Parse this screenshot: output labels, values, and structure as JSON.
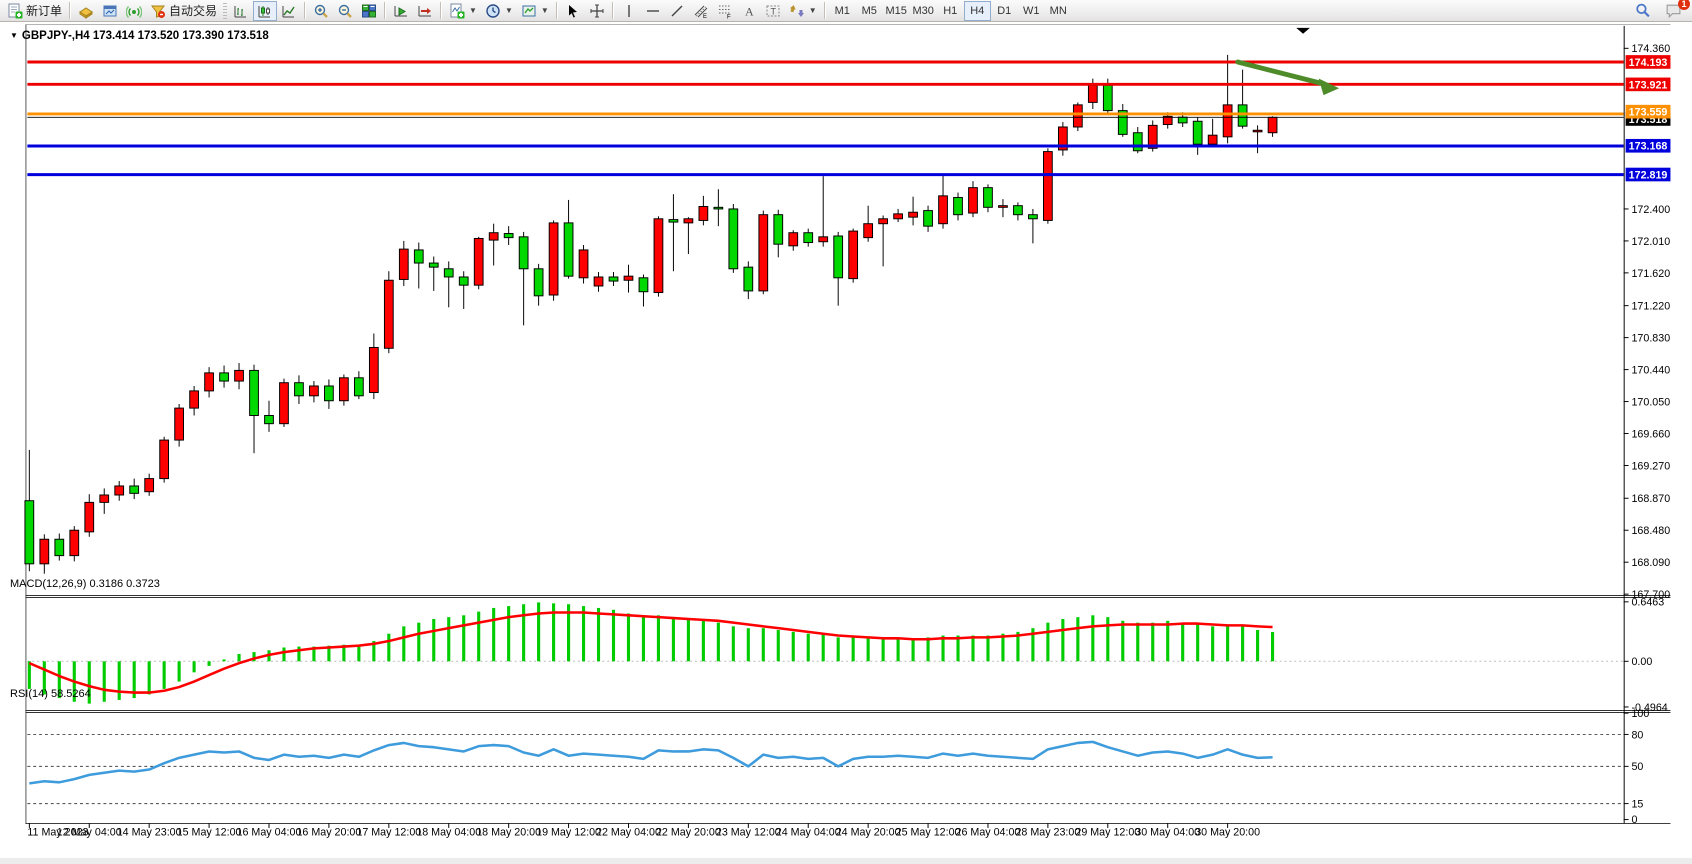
{
  "toolbar": {
    "new_order_label": "新订单",
    "autotrading_label": "自动交易",
    "notification_badge": "1",
    "channel_sub": "E",
    "fibo_sub": "F",
    "text_glyph": "A",
    "label_glyph": "T",
    "timeframes": [
      {
        "label": "M1",
        "active": false
      },
      {
        "label": "M5",
        "active": false
      },
      {
        "label": "M15",
        "active": false
      },
      {
        "label": "M30",
        "active": false
      },
      {
        "label": "H1",
        "active": false
      },
      {
        "label": "H4",
        "active": true
      },
      {
        "label": "D1",
        "active": false
      },
      {
        "label": "W1",
        "active": false
      },
      {
        "label": "MN",
        "active": false
      }
    ],
    "icon_names": [
      "new-order",
      "market",
      "charts",
      "signals",
      "autotrading",
      "bar-chart",
      "candlestick",
      "line-chart",
      "zoom-in",
      "zoom-out",
      "tile-windows",
      "auto-scroll",
      "chart-shift",
      "indicators",
      "periods",
      "templates",
      "cursor",
      "crosshair",
      "vertical-line",
      "horizontal-line",
      "trendline",
      "equidistant-channel",
      "fibonacci",
      "text",
      "text-label",
      "arrows",
      "search",
      "notifications"
    ]
  },
  "chart": {
    "title": "GBPJPY-,H4  173.414 173.520 173.390 173.518",
    "symbol_period": "GBPJPY-,H4",
    "ohlc": {
      "open": "173.414",
      "high": "173.520",
      "low": "173.390",
      "close": "173.518"
    }
  },
  "price_axis": {
    "ticks": [
      "174.360",
      "172.400",
      "172.010",
      "171.620",
      "171.220",
      "170.830",
      "170.440",
      "170.050",
      "169.660",
      "169.270",
      "168.870",
      "168.480",
      "168.090",
      "167.700"
    ],
    "badges": [
      {
        "label": "174.193",
        "color": "#ee0000"
      },
      {
        "label": "173.921",
        "color": "#ee0000"
      },
      {
        "label": "173.559",
        "color": "#ff9100"
      },
      {
        "label": "173.518",
        "color": "#000000"
      },
      {
        "label": "173.168",
        "color": "#0000dd"
      },
      {
        "label": "172.819",
        "color": "#0000dd"
      }
    ]
  },
  "time_axis": {
    "labels": [
      "11 May 2023",
      "12 May 04:00",
      "14 May 23:00",
      "15 May 12:00",
      "16 May 04:00",
      "16 May 20:00",
      "17 May 12:00",
      "18 May 04:00",
      "18 May 20:00",
      "19 May 12:00",
      "22 May 04:00",
      "22 May 20:00",
      "23 May 12:00",
      "24 May 04:00",
      "24 May 20:00",
      "25 May 12:00",
      "26 May 04:00",
      "28 May 23:00",
      "29 May 12:00",
      "30 May 04:00",
      "30 May 20:00"
    ]
  },
  "chart_data": {
    "type": "candlestick",
    "symbol": "GBPJPY",
    "timeframe": "H4",
    "up_color": "#ff0000",
    "down_color": "#00d800",
    "price_range": [
      167.7,
      174.36
    ],
    "current_price": 173.518,
    "horizontal_lines": [
      {
        "price": 174.193,
        "color": "#ee0000"
      },
      {
        "price": 173.921,
        "color": "#ee0000"
      },
      {
        "price": 173.559,
        "color": "#ff9100"
      },
      {
        "price": 173.168,
        "color": "#0000dd"
      },
      {
        "price": 172.819,
        "color": "#0000dd"
      }
    ],
    "candles": [
      [
        168.84,
        169.46,
        167.98,
        168.07
      ],
      [
        168.07,
        168.43,
        167.95,
        168.37
      ],
      [
        168.37,
        168.44,
        168.11,
        168.17
      ],
      [
        168.17,
        168.53,
        168.1,
        168.48
      ],
      [
        168.46,
        168.92,
        168.4,
        168.82
      ],
      [
        168.82,
        168.99,
        168.68,
        168.91
      ],
      [
        168.91,
        169.08,
        168.84,
        169.02
      ],
      [
        169.02,
        169.11,
        168.86,
        168.93
      ],
      [
        168.95,
        169.17,
        168.9,
        169.11
      ],
      [
        169.11,
        169.62,
        169.06,
        169.58
      ],
      [
        169.58,
        170.02,
        169.5,
        169.97
      ],
      [
        169.97,
        170.24,
        169.88,
        170.18
      ],
      [
        170.18,
        170.47,
        170.1,
        170.4
      ],
      [
        170.4,
        170.49,
        170.22,
        170.3
      ],
      [
        170.3,
        170.52,
        170.2,
        170.43
      ],
      [
        170.43,
        170.5,
        169.42,
        169.88
      ],
      [
        169.88,
        170.06,
        169.68,
        169.78
      ],
      [
        169.78,
        170.33,
        169.74,
        170.28
      ],
      [
        170.28,
        170.37,
        170.02,
        170.12
      ],
      [
        170.12,
        170.3,
        170.04,
        170.24
      ],
      [
        170.24,
        170.32,
        169.96,
        170.06
      ],
      [
        170.06,
        170.38,
        170.0,
        170.34
      ],
      [
        170.34,
        170.42,
        170.08,
        170.12
      ],
      [
        170.16,
        170.88,
        170.08,
        170.71
      ],
      [
        170.7,
        171.64,
        170.64,
        171.53
      ],
      [
        171.54,
        172.01,
        171.46,
        171.91
      ],
      [
        171.9,
        171.99,
        171.43,
        171.74
      ],
      [
        171.74,
        171.82,
        171.4,
        171.69
      ],
      [
        171.67,
        171.76,
        171.2,
        171.57
      ],
      [
        171.57,
        171.64,
        171.18,
        171.47
      ],
      [
        171.47,
        172.06,
        171.42,
        172.04
      ],
      [
        172.02,
        172.22,
        171.71,
        172.11
      ],
      [
        172.1,
        172.19,
        171.96,
        172.05
      ],
      [
        172.06,
        172.12,
        170.98,
        171.67
      ],
      [
        171.67,
        171.73,
        171.22,
        171.34
      ],
      [
        171.35,
        172.26,
        171.28,
        172.23
      ],
      [
        172.23,
        172.51,
        171.55,
        171.58
      ],
      [
        171.56,
        171.96,
        171.49,
        171.9
      ],
      [
        171.46,
        171.63,
        171.39,
        171.57
      ],
      [
        171.57,
        171.63,
        171.46,
        171.52
      ],
      [
        171.53,
        171.72,
        171.38,
        171.58
      ],
      [
        171.56,
        171.6,
        171.21,
        171.39
      ],
      [
        171.38,
        172.31,
        171.33,
        172.28
      ],
      [
        172.27,
        172.58,
        171.64,
        172.24
      ],
      [
        172.23,
        172.3,
        171.85,
        172.28
      ],
      [
        172.26,
        172.56,
        172.2,
        172.43
      ],
      [
        172.42,
        172.64,
        172.19,
        172.4
      ],
      [
        172.4,
        172.46,
        171.62,
        171.67
      ],
      [
        171.69,
        171.76,
        171.3,
        171.4
      ],
      [
        171.4,
        172.38,
        171.36,
        172.33
      ],
      [
        172.33,
        172.39,
        171.81,
        171.97
      ],
      [
        171.95,
        172.14,
        171.89,
        172.11
      ],
      [
        172.11,
        172.16,
        171.94,
        171.99
      ],
      [
        172.0,
        172.8,
        171.94,
        172.06
      ],
      [
        172.07,
        172.12,
        171.22,
        171.56
      ],
      [
        171.55,
        172.16,
        171.5,
        172.13
      ],
      [
        172.05,
        172.44,
        172.0,
        172.22
      ],
      [
        172.22,
        172.32,
        171.7,
        172.28
      ],
      [
        172.28,
        172.4,
        172.24,
        172.34
      ],
      [
        172.3,
        172.55,
        172.2,
        172.36
      ],
      [
        172.38,
        172.44,
        172.12,
        172.19
      ],
      [
        172.22,
        172.81,
        172.16,
        172.56
      ],
      [
        172.54,
        172.6,
        172.26,
        172.33
      ],
      [
        172.35,
        172.74,
        172.3,
        172.66
      ],
      [
        172.66,
        172.7,
        172.36,
        172.42
      ],
      [
        172.42,
        172.52,
        172.3,
        172.44
      ],
      [
        172.44,
        172.48,
        172.26,
        172.33
      ],
      [
        172.33,
        172.4,
        171.98,
        172.28
      ],
      [
        172.26,
        173.14,
        172.22,
        173.1
      ],
      [
        173.12,
        173.46,
        173.05,
        173.4
      ],
      [
        173.4,
        173.7,
        173.35,
        173.67
      ],
      [
        173.7,
        173.99,
        173.62,
        173.91
      ],
      [
        173.91,
        173.99,
        173.55,
        173.6
      ],
      [
        173.6,
        173.68,
        173.28,
        173.31
      ],
      [
        173.33,
        173.4,
        173.08,
        173.11
      ],
      [
        173.14,
        173.48,
        173.1,
        173.42
      ],
      [
        173.43,
        173.58,
        173.38,
        173.53
      ],
      [
        173.52,
        173.58,
        173.4,
        173.45
      ],
      [
        173.47,
        173.52,
        173.06,
        173.19
      ],
      [
        173.19,
        173.5,
        173.15,
        173.3
      ],
      [
        173.28,
        174.28,
        173.2,
        173.67
      ],
      [
        173.67,
        174.1,
        173.38,
        173.41
      ],
      [
        173.35,
        173.42,
        173.08,
        173.36
      ],
      [
        173.33,
        173.53,
        173.28,
        173.518
      ]
    ],
    "macd": {
      "label": "MACD(12,26,9) 0.3186 0.3723",
      "params": "12,26,9",
      "main_value": 0.3186,
      "signal_value": 0.3723,
      "scale": [
        "0.6463",
        "0.00",
        "-0.4964"
      ],
      "range": [
        -0.4964,
        0.6463
      ],
      "hist_color": "#00cc00",
      "signal_color": "#ff0000",
      "histogram": [
        -0.3,
        -0.36,
        -0.4,
        -0.44,
        -0.46,
        -0.44,
        -0.42,
        -0.4,
        -0.36,
        -0.3,
        -0.22,
        -0.12,
        -0.05,
        0.02,
        0.08,
        0.1,
        0.12,
        0.15,
        0.16,
        0.16,
        0.17,
        0.18,
        0.18,
        0.22,
        0.3,
        0.38,
        0.42,
        0.46,
        0.48,
        0.5,
        0.54,
        0.58,
        0.6,
        0.62,
        0.64,
        0.63,
        0.62,
        0.6,
        0.58,
        0.56,
        0.52,
        0.5,
        0.5,
        0.48,
        0.46,
        0.44,
        0.42,
        0.38,
        0.36,
        0.36,
        0.34,
        0.32,
        0.3,
        0.3,
        0.26,
        0.26,
        0.26,
        0.26,
        0.26,
        0.24,
        0.26,
        0.28,
        0.28,
        0.28,
        0.28,
        0.3,
        0.32,
        0.36,
        0.42,
        0.46,
        0.48,
        0.5,
        0.48,
        0.44,
        0.42,
        0.42,
        0.44,
        0.42,
        0.4,
        0.38,
        0.4,
        0.38,
        0.34,
        0.3186
      ],
      "signal": [
        -0.02,
        -0.09,
        -0.16,
        -0.22,
        -0.27,
        -0.31,
        -0.33,
        -0.34,
        -0.34,
        -0.32,
        -0.28,
        -0.22,
        -0.15,
        -0.08,
        -0.02,
        0.03,
        0.07,
        0.1,
        0.12,
        0.14,
        0.15,
        0.16,
        0.17,
        0.19,
        0.22,
        0.26,
        0.3,
        0.33,
        0.36,
        0.39,
        0.42,
        0.45,
        0.48,
        0.5,
        0.52,
        0.53,
        0.53,
        0.53,
        0.52,
        0.51,
        0.5,
        0.49,
        0.48,
        0.47,
        0.46,
        0.45,
        0.44,
        0.42,
        0.4,
        0.38,
        0.36,
        0.34,
        0.32,
        0.3,
        0.28,
        0.27,
        0.26,
        0.25,
        0.25,
        0.24,
        0.24,
        0.25,
        0.25,
        0.26,
        0.26,
        0.27,
        0.28,
        0.3,
        0.32,
        0.34,
        0.36,
        0.38,
        0.39,
        0.4,
        0.4,
        0.4,
        0.4,
        0.41,
        0.41,
        0.4,
        0.39,
        0.39,
        0.38,
        0.3723
      ]
    },
    "rsi": {
      "label": "RSI(14) 58.5264",
      "period": 14,
      "value": 58.5264,
      "scale": [
        "100",
        "80",
        "50",
        "15",
        "0"
      ],
      "levels": [
        80,
        50,
        15
      ],
      "color": "#3e9bdc",
      "series": [
        34,
        36,
        35,
        38,
        42,
        44,
        46,
        45,
        47,
        53,
        58,
        61,
        64,
        63,
        64,
        58,
        56,
        61,
        59,
        60,
        58,
        61,
        59,
        65,
        70,
        72,
        69,
        68,
        66,
        64,
        69,
        70,
        69,
        63,
        60,
        66,
        60,
        62,
        61,
        60,
        59,
        57,
        65,
        64,
        64,
        66,
        65,
        58,
        50,
        61,
        58,
        59,
        57,
        58,
        50,
        57,
        59,
        59,
        60,
        59,
        58,
        62,
        60,
        62,
        60,
        59,
        58,
        57,
        66,
        69,
        72,
        73,
        68,
        64,
        60,
        63,
        64,
        62,
        58,
        61,
        66,
        61,
        58,
        58.53
      ]
    },
    "annotations": {
      "arrow": {
        "from_price": 174.19,
        "to_price": 173.95,
        "color": "#4e8c2a"
      }
    }
  }
}
